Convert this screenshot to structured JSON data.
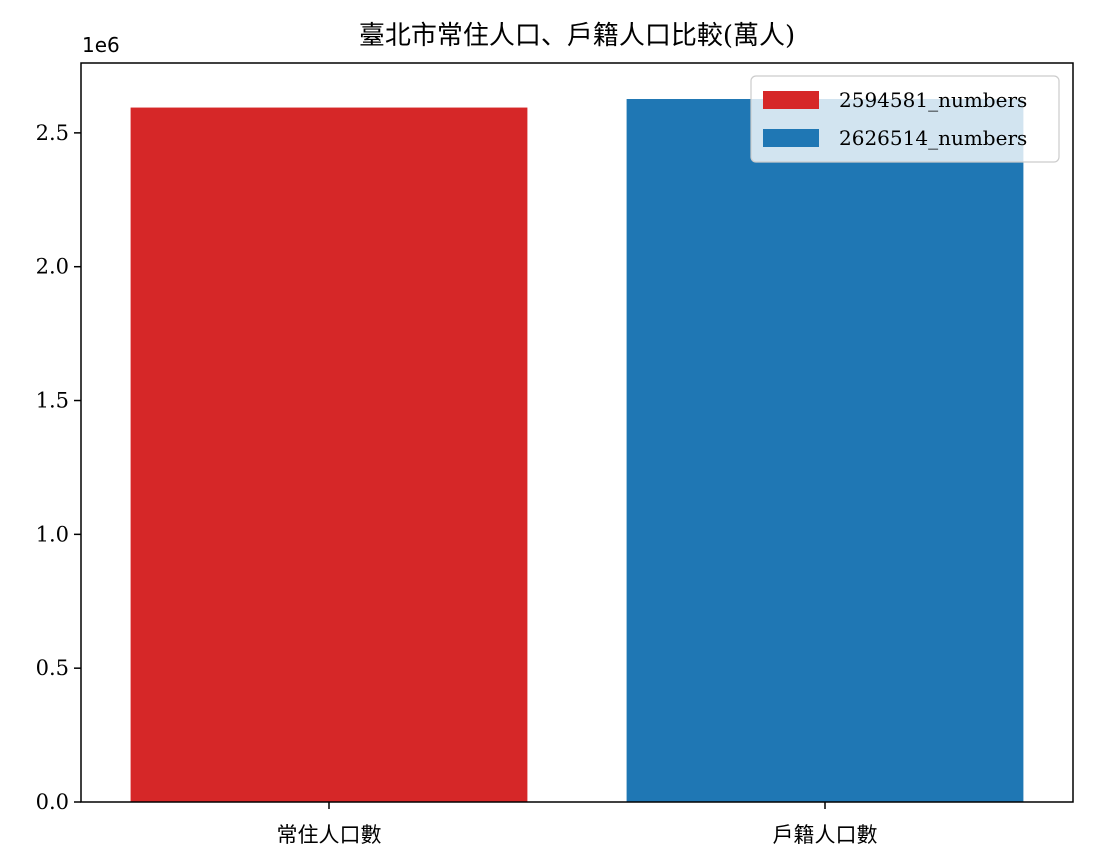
{
  "chart_data": {
    "type": "bar",
    "title": "臺北市常住人口、戶籍人口比較(萬人)",
    "xlabel": "",
    "ylabel": "",
    "categories": [
      "常住人口數",
      "戶籍人口數"
    ],
    "series": [
      {
        "name": "2594581_numbers",
        "values": [
          2594581,
          null
        ],
        "color": "#d62728"
      },
      {
        "name": "2626514_numbers",
        "values": [
          null,
          2626514
        ],
        "color": "#1f77b4"
      }
    ],
    "ylim": [
      0,
      2761060
    ],
    "yticks": [
      0,
      500000,
      1000000,
      1500000,
      2000000,
      2500000
    ],
    "ytick_labels": [
      "0.0",
      "0.5",
      "1.0",
      "1.5",
      "2.0",
      "2.5"
    ],
    "y_offset_label": "1e6",
    "grid": false,
    "legend_position": "top-right"
  }
}
